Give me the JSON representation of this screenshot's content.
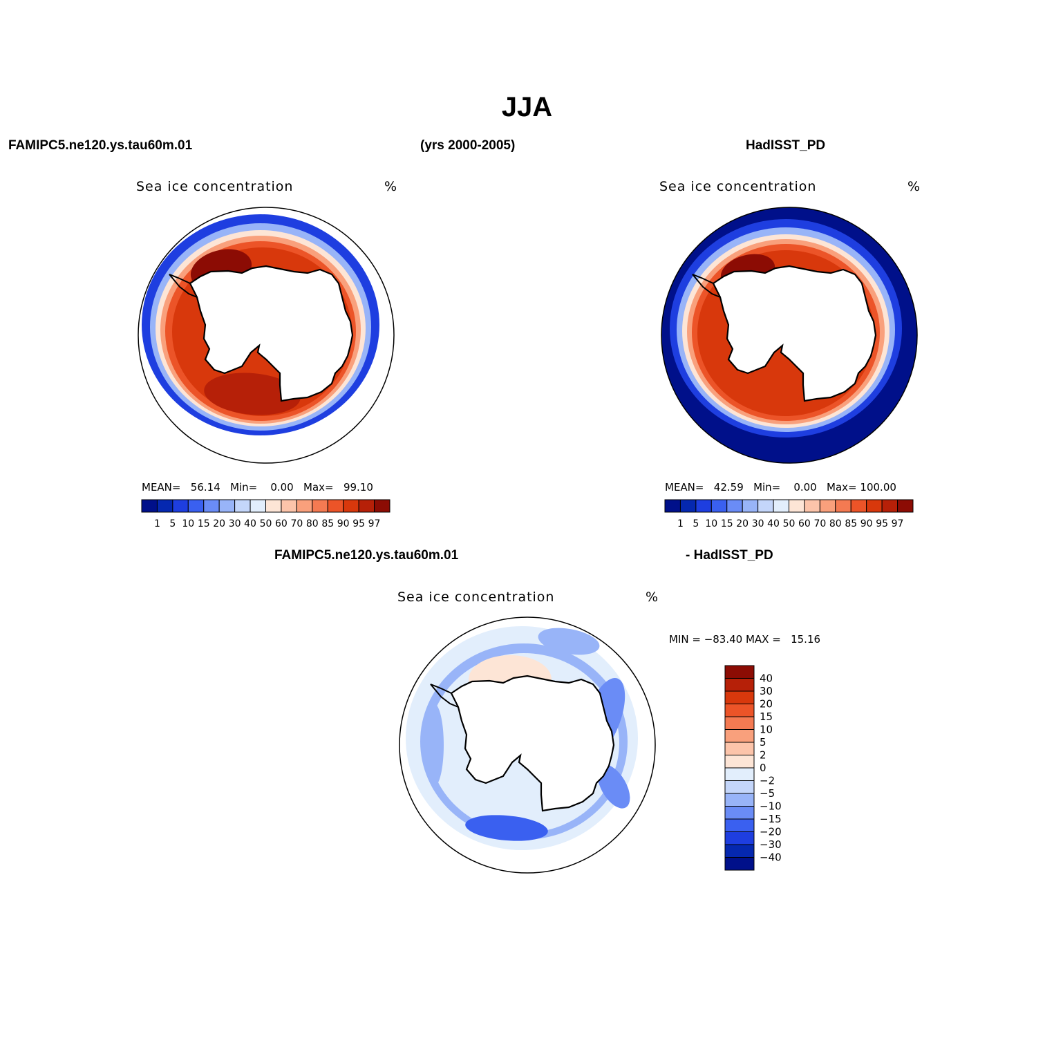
{
  "season": "JJA",
  "header": {
    "left": "FAMIPC5.ne120.ys.tau60m.01",
    "center": "(yrs 2000-2005)",
    "right": "HadISST_PD"
  },
  "diff_header": {
    "left": "FAMIPC5.ne120.ys.tau60m.01",
    "right": "- HadISST_PD"
  },
  "panels": [
    {
      "name": "model",
      "title": "Sea ice concentration",
      "units": "%",
      "mean_label": "MEAN=",
      "mean": "56.14",
      "min_label": "Min=",
      "min": "0.00",
      "max_label": "Max=",
      "max": "99.10"
    },
    {
      "name": "obs",
      "title": "Sea ice concentration",
      "units": "%",
      "mean_label": "MEAN=",
      "mean": "42.59",
      "min_label": "Min=",
      "min": "0.00",
      "max_label": "Max=",
      "max": "100.00"
    }
  ],
  "diff_panel": {
    "title": "Sea ice concentration",
    "units": "%",
    "minmax": "MIN = −83.40 MAX =   15.16"
  },
  "colorbar_abs": {
    "levels": [
      "1",
      "5",
      "10",
      "15",
      "20",
      "30",
      "40",
      "50",
      "60",
      "70",
      "80",
      "85",
      "90",
      "95",
      "97"
    ],
    "colors": [
      "#00108a",
      "#0528b0",
      "#1e3ee0",
      "#3a60f0",
      "#6a8cf6",
      "#98b4f8",
      "#c4d6fa",
      "#e2eefc",
      "#fde5d6",
      "#fcc4aa",
      "#f9a07c",
      "#f47a52",
      "#ec5428",
      "#d8380c",
      "#b62008",
      "#8c0c04"
    ]
  },
  "colorbar_diff": {
    "levels": [
      "40",
      "30",
      "20",
      "15",
      "10",
      "5",
      "2",
      "0",
      "−2",
      "−5",
      "−10",
      "−15",
      "−20",
      "−30",
      "−40"
    ],
    "colors": [
      "#8c0c04",
      "#b62008",
      "#d8380c",
      "#ec5428",
      "#f47a52",
      "#f9a07c",
      "#fcc4aa",
      "#fde5d6",
      "#e2eefc",
      "#c4d6fa",
      "#98b4f8",
      "#6a8cf6",
      "#3a60f0",
      "#1e3ee0",
      "#0528b0",
      "#00108a"
    ]
  }
}
